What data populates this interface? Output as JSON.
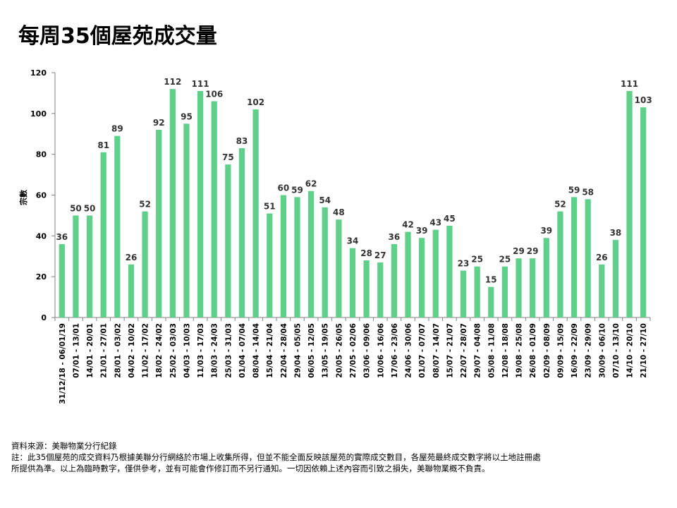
{
  "title": "每周35個屋苑成交量",
  "chart_data": {
    "type": "bar",
    "title": "每周35個屋苑成交量",
    "xlabel": "",
    "ylabel": "宗數",
    "ylim": [
      0,
      120
    ],
    "yticks": [
      0,
      20,
      40,
      60,
      80,
      100,
      120
    ],
    "bar_color": "#5fd08a",
    "categories": [
      "31/12/18 - 06/01/19",
      "07/01 - 13/01",
      "14/01 - 20/01",
      "21/01 - 27/01",
      "28/01 - 03/02",
      "04/02 - 10/02",
      "11/02 - 17/02",
      "18/02 - 24/02",
      "25/02 - 03/03",
      "04/03 - 10/03",
      "11/03 - 17/03",
      "18/03 - 24/03",
      "25/03 - 31/03",
      "01/04 - 07/04",
      "08/04 - 14/04",
      "15/04 - 21/04",
      "22/04 - 28/04",
      "29/04 - 05/05",
      "06/05 - 12/05",
      "13/05 - 19/05",
      "20/05 - 26/05",
      "27/05 - 02/06",
      "03/06 - 09/06",
      "10/06 - 16/06",
      "17/06 - 23/06",
      "24/06 - 30/06",
      "01/07 - 07/07",
      "08/07 - 14/07",
      "15/07 - 21/07",
      "22/07 - 28/07",
      "29/07 - 04/08",
      "05/08 - 11/08",
      "12/08 - 18/08",
      "19/08 - 25/08",
      "26/08 - 01/09",
      "02/09 - 08/09",
      "09/09 - 15/09",
      "16/09 - 22/09",
      "23/09 - 29/09",
      "30/09 - 06/10",
      "07/10 - 13/10",
      "14/10 - 20/10",
      "21/10 - 27/10"
    ],
    "values": [
      36,
      50,
      50,
      81,
      89,
      26,
      52,
      92,
      112,
      95,
      111,
      106,
      75,
      83,
      102,
      51,
      60,
      59,
      62,
      54,
      48,
      34,
      28,
      27,
      36,
      42,
      39,
      43,
      45,
      23,
      25,
      15,
      25,
      29,
      29,
      39,
      52,
      59,
      58,
      26,
      38,
      111,
      103
    ]
  },
  "footnotes": {
    "source": "資料來源：美聯物業分行紀錄",
    "note_line1": "註：此35個屋苑的成交資料乃根據美聯分行網絡於市場上收集所得，但並不能全面反映該屋苑的實際成交數目，各屋苑最終成交數字將以土地註冊處",
    "note_line2": "所提供為準。以上為臨時數字，僅供參考，並有可能會作修訂而不另行通知。一切因依賴上述內容而引致之損失，美聯物業概不負責。"
  }
}
